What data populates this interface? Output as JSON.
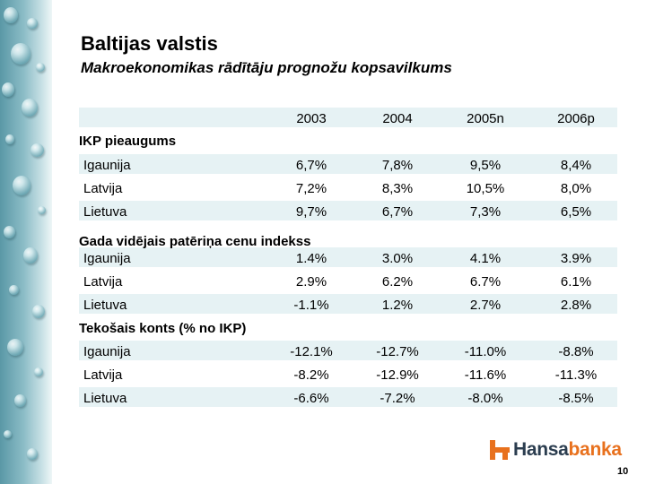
{
  "title": "Baltijas valstis",
  "subtitle": "Makroekonomikas rādītāju prognožu kopsavilkums",
  "years": [
    "2003",
    "2004",
    "2005n",
    "2006p"
  ],
  "sections": [
    {
      "name": "IKP pieaugums",
      "rows": [
        {
          "country": "Igaunija",
          "values": [
            "6,7%",
            "7,8%",
            "9,5%",
            "8,4%"
          ]
        },
        {
          "country": "Latvija",
          "values": [
            "7,2%",
            "8,3%",
            "10,5%",
            "8,0%"
          ]
        },
        {
          "country": "Lietuva",
          "values": [
            "9,7%",
            "6,7%",
            "7,3%",
            "6,5%"
          ]
        }
      ]
    },
    {
      "name": "Gada vidējais patēriņa cenu indekss",
      "rows": [
        {
          "country": "Igaunija",
          "values": [
            "1.4%",
            "3.0%",
            "4.1%",
            "3.9%"
          ]
        },
        {
          "country": "Latvija",
          "values": [
            "2.9%",
            "6.2%",
            "6.7%",
            "6.1%"
          ]
        },
        {
          "country": "Lietuva",
          "values": [
            "-1.1%",
            "1.2%",
            "2.7%",
            "2.8%"
          ]
        }
      ]
    },
    {
      "name": "Tekošais konts (% no IKP)",
      "rows": [
        {
          "country": "Igaunija",
          "values": [
            "-12.1%",
            "-12.7%",
            "-11.0%",
            "-8.8%"
          ]
        },
        {
          "country": "Latvija",
          "values": [
            "-8.2%",
            "-12.9%",
            "-11.6%",
            "-11.3%"
          ]
        },
        {
          "country": "Lietuva",
          "values": [
            "-6.6%",
            "-7.2%",
            "-8.0%",
            "-8.5%"
          ]
        }
      ]
    }
  ],
  "logo": {
    "part1": "Hansa",
    "part2": "banka"
  },
  "page_number": "10",
  "colors": {
    "band": "#e6f2f4",
    "logo_orange": "#e8711e",
    "logo_dark": "#2b3d4f"
  }
}
